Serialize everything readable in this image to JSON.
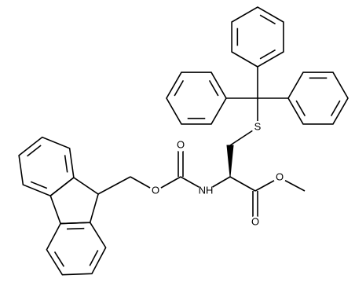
{
  "labels": [
    "O",
    "O",
    "NH",
    "O",
    "O",
    "S"
  ]
}
